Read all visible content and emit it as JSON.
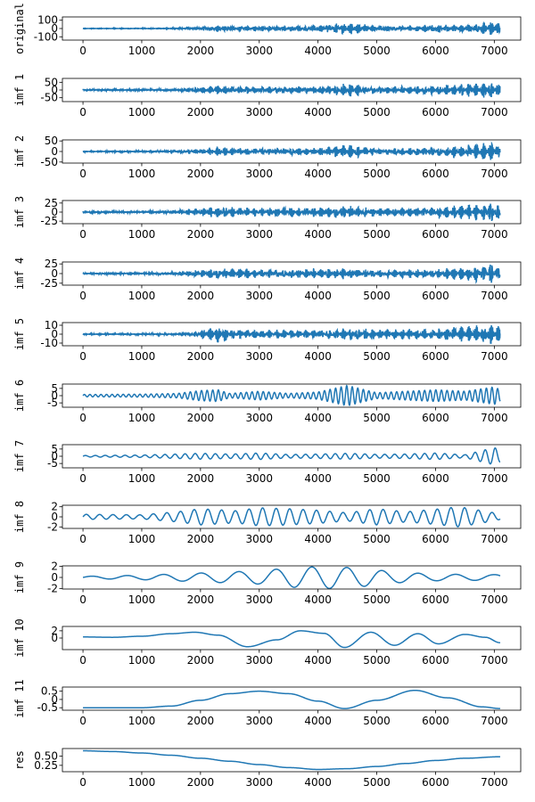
{
  "chart_data": {
    "type": "line",
    "x_ticks": [
      0,
      1000,
      2000,
      3000,
      4000,
      5000,
      6000,
      7000
    ],
    "xlim": [
      -350,
      7450
    ],
    "series_color": "#1f77b4",
    "panels": [
      {
        "ylabel": "original",
        "ylim": [
          -140,
          140
        ],
        "yticks": [
          100,
          0,
          -100
        ],
        "ytick_labels": [
          "100",
          "0",
          "-100"
        ],
        "kind": "noise",
        "envelope": [
          [
            0,
            3
          ],
          [
            1500,
            5
          ],
          [
            2000,
            25
          ],
          [
            2300,
            45
          ],
          [
            2500,
            25
          ],
          [
            3000,
            35
          ],
          [
            3500,
            30
          ],
          [
            4000,
            40
          ],
          [
            4500,
            80
          ],
          [
            5000,
            35
          ],
          [
            5500,
            30
          ],
          [
            6000,
            55
          ],
          [
            6500,
            40
          ],
          [
            7000,
            95
          ],
          [
            7100,
            60
          ]
        ]
      },
      {
        "ylabel": "imf 1",
        "ylim": [
          -75,
          75
        ],
        "yticks": [
          50,
          0,
          -50
        ],
        "ytick_labels": [
          "50",
          "0",
          "-50"
        ],
        "kind": "noise",
        "envelope": [
          [
            0,
            6
          ],
          [
            1500,
            8
          ],
          [
            2000,
            20
          ],
          [
            2300,
            30
          ],
          [
            3000,
            22
          ],
          [
            4000,
            25
          ],
          [
            4500,
            45
          ],
          [
            5000,
            22
          ],
          [
            6000,
            30
          ],
          [
            7000,
            55
          ],
          [
            7100,
            35
          ]
        ]
      },
      {
        "ylabel": "imf 2",
        "ylim": [
          -55,
          55
        ],
        "yticks": [
          50,
          0,
          -50
        ],
        "ytick_labels": [
          "50",
          "0",
          "-50"
        ],
        "kind": "noise",
        "envelope": [
          [
            0,
            2
          ],
          [
            1500,
            5
          ],
          [
            2000,
            12
          ],
          [
            2300,
            22
          ],
          [
            3000,
            15
          ],
          [
            4000,
            18
          ],
          [
            4500,
            35
          ],
          [
            5000,
            15
          ],
          [
            6000,
            22
          ],
          [
            7000,
            45
          ],
          [
            7100,
            25
          ]
        ]
      },
      {
        "ylabel": "imf 3",
        "ylim": [
          -32,
          32
        ],
        "yticks": [
          25,
          0,
          -25
        ],
        "ytick_labels": [
          "25",
          "0",
          "-25"
        ],
        "kind": "noise",
        "envelope": [
          [
            0,
            3
          ],
          [
            1500,
            5
          ],
          [
            1800,
            10
          ],
          [
            2300,
            15
          ],
          [
            3000,
            12
          ],
          [
            4000,
            14
          ],
          [
            4500,
            18
          ],
          [
            5000,
            12
          ],
          [
            6000,
            14
          ],
          [
            7000,
            28
          ],
          [
            7100,
            15
          ]
        ]
      },
      {
        "ylabel": "imf 4",
        "ylim": [
          -30,
          30
        ],
        "yticks": [
          25,
          0,
          -25
        ],
        "ytick_labels": [
          "25",
          "0",
          "-25"
        ],
        "kind": "noise",
        "envelope": [
          [
            0,
            2
          ],
          [
            1500,
            4
          ],
          [
            1800,
            8
          ],
          [
            2300,
            14
          ],
          [
            3000,
            12
          ],
          [
            4000,
            12
          ],
          [
            4500,
            15
          ],
          [
            5000,
            10
          ],
          [
            6000,
            12
          ],
          [
            7000,
            26
          ],
          [
            7100,
            12
          ]
        ]
      },
      {
        "ylabel": "imf 5",
        "ylim": [
          -13,
          13
        ],
        "yticks": [
          10,
          0,
          -10
        ],
        "ytick_labels": [
          "10",
          "0",
          "-10"
        ],
        "kind": "noise",
        "envelope": [
          [
            0,
            0.6
          ],
          [
            1500,
            1
          ],
          [
            1800,
            2
          ],
          [
            2000,
            5
          ],
          [
            2300,
            10
          ],
          [
            2500,
            6
          ],
          [
            3000,
            5
          ],
          [
            4000,
            5
          ],
          [
            4500,
            7
          ],
          [
            5000,
            6
          ],
          [
            6000,
            6
          ],
          [
            7000,
            12
          ],
          [
            7100,
            8
          ]
        ]
      },
      {
        "ylabel": "imf 6",
        "ylim": [
          -8,
          8
        ],
        "yticks": [
          5,
          0,
          -5
        ],
        "ytick_labels": [
          "5",
          "0",
          "-5"
        ],
        "kind": "osc",
        "period": 95,
        "envelope": [
          [
            0,
            0.8
          ],
          [
            1000,
            1
          ],
          [
            1600,
            1.5
          ],
          [
            2000,
            3.5
          ],
          [
            2300,
            4
          ],
          [
            2500,
            1.5
          ],
          [
            3000,
            3
          ],
          [
            3500,
            1.5
          ],
          [
            4000,
            2.5
          ],
          [
            4500,
            7
          ],
          [
            5000,
            2
          ],
          [
            6000,
            4
          ],
          [
            6500,
            3
          ],
          [
            7000,
            6
          ],
          [
            7100,
            4
          ]
        ]
      },
      {
        "ylabel": "imf 7",
        "ylim": [
          -8,
          8
        ],
        "yticks": [
          5,
          0,
          -5
        ],
        "ytick_labels": [
          "5",
          "0",
          "-5"
        ],
        "kind": "osc",
        "period": 170,
        "envelope": [
          [
            0,
            0.5
          ],
          [
            1000,
            0.8
          ],
          [
            2000,
            2
          ],
          [
            2500,
            1.5
          ],
          [
            3000,
            2.2
          ],
          [
            3500,
            1.2
          ],
          [
            4000,
            1.5
          ],
          [
            4500,
            2
          ],
          [
            5000,
            1.3
          ],
          [
            5500,
            1.5
          ],
          [
            6000,
            2.2
          ],
          [
            6500,
            1
          ],
          [
            7000,
            6
          ],
          [
            7100,
            4
          ]
        ]
      },
      {
        "ylabel": "imf 8",
        "ylim": [
          -2.3,
          2.3
        ],
        "yticks": [
          2,
          0,
          -2
        ],
        "ytick_labels": [
          "2",
          "0",
          "-2"
        ],
        "kind": "osc",
        "period": 230,
        "envelope": [
          [
            0,
            0.5
          ],
          [
            1000,
            0.4
          ],
          [
            1600,
            1
          ],
          [
            2000,
            1.6
          ],
          [
            2600,
            1.2
          ],
          [
            3000,
            1.8
          ],
          [
            3500,
            1.6
          ],
          [
            4000,
            1.3
          ],
          [
            4500,
            0.8
          ],
          [
            5000,
            1.6
          ],
          [
            5500,
            1
          ],
          [
            6000,
            1.5
          ],
          [
            6400,
            2
          ],
          [
            7000,
            0.8
          ],
          [
            7100,
            0.5
          ]
        ]
      },
      {
        "ylabel": "imf 9",
        "ylim": [
          -2.1,
          2.1
        ],
        "yticks": [
          2,
          0,
          -2
        ],
        "ytick_labels": [
          "2",
          "0",
          "-2"
        ],
        "kind": "osc",
        "period": 620,
        "envelope": [
          [
            0,
            0.2
          ],
          [
            1000,
            0.4
          ],
          [
            1500,
            0.6
          ],
          [
            2000,
            0.8
          ],
          [
            3000,
            1.2
          ],
          [
            3600,
            1.8
          ],
          [
            4200,
            2
          ],
          [
            4800,
            1.6
          ],
          [
            5300,
            1
          ],
          [
            6000,
            0.6
          ],
          [
            7000,
            0.5
          ],
          [
            7100,
            0.6
          ]
        ]
      },
      {
        "ylabel": "imf 10",
        "ylim": [
          -3.2,
          3.2
        ],
        "yticks": [
          2,
          0
        ],
        "ytick_labels": [
          "2",
          "0"
        ],
        "kind": "points",
        "points": [
          [
            0,
            0.3
          ],
          [
            500,
            0.2
          ],
          [
            1000,
            0.5
          ],
          [
            1500,
            1.2
          ],
          [
            1900,
            1.6
          ],
          [
            2300,
            0.8
          ],
          [
            2800,
            -2.4
          ],
          [
            3300,
            -0.5
          ],
          [
            3700,
            2.0
          ],
          [
            4100,
            1.3
          ],
          [
            4450,
            -2.6
          ],
          [
            4900,
            1.6
          ],
          [
            5300,
            -2.0
          ],
          [
            5700,
            1.2
          ],
          [
            6050,
            -1.6
          ],
          [
            6500,
            1.0
          ],
          [
            6850,
            0.2
          ],
          [
            7100,
            -1.3
          ]
        ]
      },
      {
        "ylabel": "imf 11",
        "ylim": [
          -0.65,
          0.75
        ],
        "yticks": [
          0.5,
          0,
          -0.5
        ],
        "ytick_labels": [
          "0.5",
          "0",
          "-0.5"
        ],
        "kind": "points",
        "points": [
          [
            0,
            -0.5
          ],
          [
            1000,
            -0.5
          ],
          [
            1500,
            -0.4
          ],
          [
            2000,
            -0.05
          ],
          [
            2500,
            0.35
          ],
          [
            3000,
            0.5
          ],
          [
            3500,
            0.35
          ],
          [
            4000,
            -0.1
          ],
          [
            4450,
            -0.55
          ],
          [
            5000,
            -0.05
          ],
          [
            5650,
            0.55
          ],
          [
            6200,
            0.1
          ],
          [
            6800,
            -0.45
          ],
          [
            7100,
            -0.55
          ]
        ]
      },
      {
        "ylabel": "res",
        "ylim": [
          0.08,
          0.7
        ],
        "yticks": [
          0.5,
          0.25
        ],
        "ytick_labels": [
          "0.50",
          "0.25"
        ],
        "kind": "points",
        "points": [
          [
            0,
            0.64
          ],
          [
            500,
            0.62
          ],
          [
            1000,
            0.58
          ],
          [
            1500,
            0.52
          ],
          [
            2000,
            0.44
          ],
          [
            2500,
            0.36
          ],
          [
            3000,
            0.27
          ],
          [
            3500,
            0.19
          ],
          [
            4000,
            0.14
          ],
          [
            4500,
            0.16
          ],
          [
            5000,
            0.22
          ],
          [
            5500,
            0.3
          ],
          [
            6000,
            0.38
          ],
          [
            6500,
            0.44
          ],
          [
            7100,
            0.48
          ]
        ]
      }
    ]
  }
}
